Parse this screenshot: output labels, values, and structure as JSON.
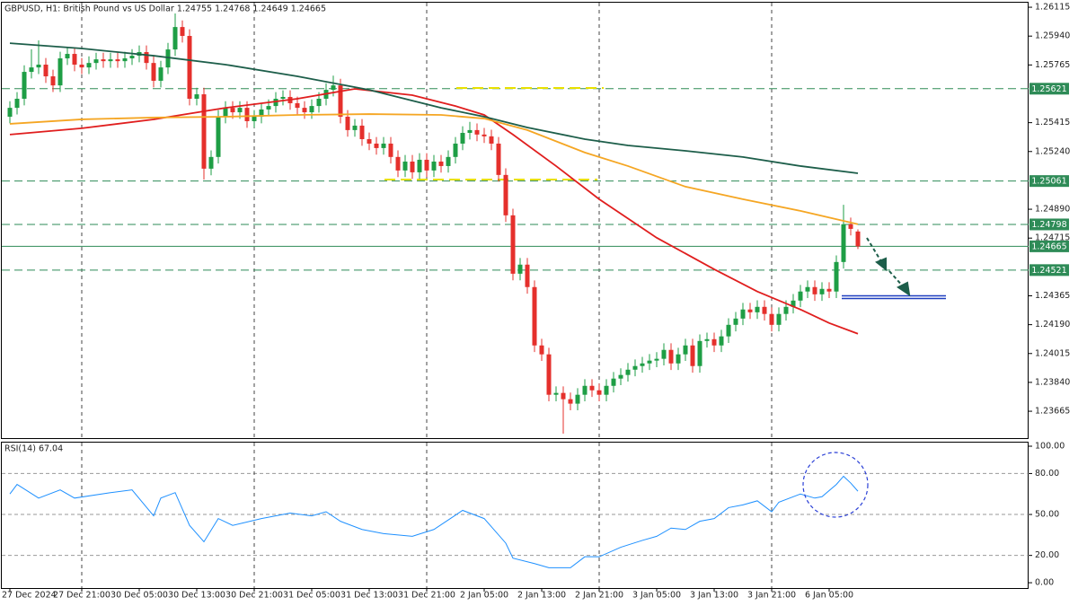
{
  "chart_data": [
    {
      "type": "candlestick",
      "title": "GBPUSD, H1:  British Pound vs US Dollar  1.24755 1.24768 1.24649 1.24665",
      "bull_color": "#1e9e45",
      "bear_color": "#e5302c",
      "ylim": [
        1.23502,
        1.26148
      ],
      "yticks": [
        1.26115,
        {
          "value": 1.2594,
          "label": "1.25940"
        },
        1.25765,
        1.25415,
        {
          "value": 1.2524,
          "label": "1.25240"
        },
        {
          "value": 1.2489,
          "label": "1.24890"
        },
        1.24715,
        1.24365,
        {
          "value": 1.2419,
          "label": "1.24190"
        },
        1.24015,
        {
          "value": 1.2384,
          "label": "1.23840"
        },
        1.23665
      ],
      "categories": [
        "27 Dec 2024",
        null,
        null,
        null,
        null,
        null,
        null,
        null,
        null,
        null,
        "27 Dec 21:00",
        null,
        null,
        null,
        null,
        null,
        null,
        null,
        "30 Dec 05:00",
        null,
        null,
        null,
        null,
        null,
        null,
        null,
        "30 Dec 13:00",
        null,
        null,
        null,
        null,
        null,
        null,
        null,
        "30 Dec 21:00",
        null,
        null,
        null,
        null,
        null,
        null,
        null,
        "31 Dec 05:00",
        null,
        null,
        null,
        null,
        null,
        null,
        null,
        "31 Dec 13:00",
        null,
        null,
        null,
        null,
        null,
        null,
        null,
        "31 Dec 21:00",
        null,
        null,
        null,
        null,
        null,
        null,
        null,
        "2 Jan 05:00",
        null,
        null,
        null,
        null,
        null,
        null,
        null,
        "2 Jan 13:00",
        null,
        null,
        null,
        null,
        null,
        null,
        null,
        "2 Jan 21:00",
        null,
        null,
        null,
        null,
        null,
        null,
        null,
        "3 Jan 05:00",
        null,
        null,
        null,
        null,
        null,
        null,
        null,
        "3 Jan 13:00",
        null,
        null,
        null,
        null,
        null,
        null,
        null,
        "3 Jan 21:00",
        null,
        null,
        null,
        null,
        null,
        null,
        null,
        "6 Jan 05:00",
        null,
        null,
        null,
        null
      ],
      "open": [
        1.25451,
        1.25505,
        1.2556,
        1.25723,
        1.2575,
        1.25767,
        1.25696,
        1.25641,
        1.25805,
        1.25832,
        1.25767,
        1.2575,
        1.25777,
        1.25799,
        1.25788,
        1.25799,
        1.25788,
        1.25805,
        1.25821,
        1.25843,
        1.25777,
        1.25669,
        1.2575,
        1.25859,
        1.25995,
        1.25941,
        1.2556,
        1.25587,
        1.25136,
        1.25207,
        1.25451,
        1.25505,
        1.25478,
        1.25505,
        1.25424,
        1.25451,
        1.25495,
        1.25516,
        1.2556,
        1.25571,
        1.25533,
        1.25505,
        1.25478,
        1.25516,
        1.2556,
        1.25614,
        1.25641,
        1.25451,
        1.2537,
        1.25397,
        1.25315,
        1.25288,
        1.25261,
        1.25288,
        1.25207,
        1.25125,
        1.25179,
        1.25114,
        1.2519,
        1.25125,
        1.25179,
        1.25152,
        1.25207,
        1.25288,
        1.25353,
        1.2537,
        1.25343,
        1.25332,
        1.25288,
        1.25098,
        1.24853,
        1.24499,
        1.24554,
        1.24418,
        1.24064,
        1.2401,
        1.23765,
        1.23776,
        1.23738,
        1.23711,
        1.23765,
        1.23819,
        1.23792,
        1.23765,
        1.23819,
        1.23863,
        1.23885,
        1.23917,
        1.23939,
        1.23955,
        1.23972,
        1.23983,
        1.24037,
        1.23955,
        1.2401,
        1.24064,
        1.23939,
        1.24091,
        1.24102,
        1.24064,
        1.24119,
        1.24189,
        1.24227,
        1.24282,
        1.24265,
        1.24298,
        1.24255,
        1.24189,
        1.24255,
        1.24298,
        1.24336,
        1.24391,
        1.24418,
        1.24374,
        1.24407,
        1.24391,
        1.2457,
        1.24799,
        1.24755
      ],
      "high": [
        1.25545,
        1.256,
        1.25763,
        1.2586,
        1.25914,
        1.25807,
        1.25736,
        1.25845,
        1.25872,
        1.25872,
        1.25807,
        1.25817,
        1.25839,
        1.25839,
        1.25839,
        1.25839,
        1.25845,
        1.25861,
        1.25883,
        1.25883,
        1.25817,
        1.2579,
        1.25899,
        1.26077,
        1.26035,
        1.25981,
        1.25627,
        1.25627,
        1.25247,
        1.25491,
        1.25545,
        1.25545,
        1.25545,
        1.25545,
        1.25491,
        1.25535,
        1.25556,
        1.256,
        1.25611,
        1.25611,
        1.25573,
        1.25545,
        1.25556,
        1.256,
        1.25654,
        1.257,
        1.25681,
        1.25491,
        1.25437,
        1.25437,
        1.25355,
        1.25328,
        1.25328,
        1.25328,
        1.25247,
        1.25219,
        1.25219,
        1.2523,
        1.2523,
        1.25219,
        1.25219,
        1.25247,
        1.25328,
        1.25393,
        1.2542,
        1.2541,
        1.25383,
        1.25372,
        1.25328,
        1.25138,
        1.24893,
        1.24594,
        1.24594,
        1.24458,
        1.24104,
        1.2405,
        1.23816,
        1.23816,
        1.23778,
        1.23805,
        1.23859,
        1.23859,
        1.23832,
        1.23859,
        1.23903,
        1.23925,
        1.23957,
        1.23979,
        1.23995,
        1.24012,
        1.24023,
        1.24077,
        1.24077,
        1.2405,
        1.24104,
        1.24104,
        1.24131,
        1.24142,
        1.24142,
        1.24159,
        1.24229,
        1.24267,
        1.24322,
        1.24322,
        1.24338,
        1.24338,
        1.24295,
        1.24295,
        1.24338,
        1.24376,
        1.24431,
        1.24458,
        1.24458,
        1.24447,
        1.24447,
        1.2461,
        1.24917,
        1.24839,
        1.24768
      ],
      "low": [
        1.25411,
        1.25465,
        1.2552,
        1.25683,
        1.2571,
        1.25656,
        1.25601,
        1.25601,
        1.25765,
        1.25727,
        1.2571,
        1.2571,
        1.25737,
        1.25748,
        1.25748,
        1.25748,
        1.25748,
        1.25765,
        1.25781,
        1.25737,
        1.25629,
        1.25629,
        1.2571,
        1.25819,
        1.25901,
        1.2552,
        1.2552,
        1.2507,
        1.25096,
        1.25167,
        1.25411,
        1.25438,
        1.25438,
        1.25384,
        1.25384,
        1.25411,
        1.25455,
        1.25476,
        1.2552,
        1.25493,
        1.25465,
        1.25438,
        1.25438,
        1.25476,
        1.2552,
        1.25574,
        1.25411,
        1.2533,
        1.2533,
        1.25275,
        1.25248,
        1.25221,
        1.25221,
        1.25167,
        1.25085,
        1.25085,
        1.25074,
        1.25074,
        1.25085,
        1.25085,
        1.25112,
        1.25112,
        1.25167,
        1.25248,
        1.25313,
        1.25303,
        1.25292,
        1.25248,
        1.25058,
        1.24813,
        1.24459,
        1.24459,
        1.24378,
        1.24024,
        1.2397,
        1.23725,
        1.23725,
        1.23529,
        1.23671,
        1.23671,
        1.23725,
        1.23752,
        1.23725,
        1.23725,
        1.23779,
        1.23823,
        1.23845,
        1.23877,
        1.23899,
        1.23915,
        1.23932,
        1.23943,
        1.23915,
        1.23915,
        1.2397,
        1.23899,
        1.23899,
        1.24051,
        1.24024,
        1.24024,
        1.24079,
        1.24149,
        1.24187,
        1.24225,
        1.24225,
        1.24215,
        1.24149,
        1.24149,
        1.24215,
        1.24258,
        1.24296,
        1.24351,
        1.24334,
        1.24334,
        1.24351,
        1.24351,
        1.2453,
        1.24731,
        1.24649
      ],
      "close": [
        1.25505,
        1.2556,
        1.25723,
        1.2575,
        1.25767,
        1.25696,
        1.25641,
        1.25805,
        1.25832,
        1.25767,
        1.2575,
        1.25777,
        1.25799,
        1.25788,
        1.25799,
        1.25788,
        1.25805,
        1.25821,
        1.25843,
        1.25777,
        1.25669,
        1.2575,
        1.25859,
        1.25995,
        1.25941,
        1.2556,
        1.25587,
        1.25136,
        1.25207,
        1.25451,
        1.25505,
        1.25478,
        1.25505,
        1.25424,
        1.25451,
        1.25495,
        1.25516,
        1.2556,
        1.25571,
        1.25533,
        1.25505,
        1.25478,
        1.25516,
        1.2556,
        1.25614,
        1.25641,
        1.25451,
        1.2537,
        1.25397,
        1.25315,
        1.25288,
        1.25261,
        1.25288,
        1.25207,
        1.25125,
        1.25179,
        1.25114,
        1.2519,
        1.25125,
        1.25179,
        1.25152,
        1.25207,
        1.25288,
        1.25353,
        1.2537,
        1.25343,
        1.25332,
        1.25288,
        1.25098,
        1.24853,
        1.24499,
        1.24554,
        1.24418,
        1.24064,
        1.2401,
        1.23765,
        1.23776,
        1.23738,
        1.23711,
        1.23765,
        1.23819,
        1.23792,
        1.23765,
        1.23819,
        1.23863,
        1.23885,
        1.23917,
        1.23939,
        1.23955,
        1.23972,
        1.23983,
        1.24037,
        1.23955,
        1.2401,
        1.24064,
        1.23939,
        1.24091,
        1.24102,
        1.24064,
        1.24119,
        1.24189,
        1.24227,
        1.24282,
        1.24265,
        1.24298,
        1.24255,
        1.24189,
        1.24255,
        1.24298,
        1.24336,
        1.24391,
        1.24418,
        1.24374,
        1.24407,
        1.24391,
        1.2457,
        1.24799,
        1.24771,
        1.24665
      ],
      "lines": [
        {
          "color": "#e01e1e",
          "x": [
            0,
            10,
            20,
            30,
            40,
            48,
            56,
            62,
            66,
            70,
            76,
            82,
            90,
            98,
            104,
            110,
            114,
            118
          ],
          "values": [
            1.25343,
            1.25381,
            1.25435,
            1.25505,
            1.2556,
            1.2562,
            1.25582,
            1.25516,
            1.25462,
            1.25343,
            1.25152,
            1.24951,
            1.24717,
            1.24526,
            1.24391,
            1.24282,
            1.242,
            1.24135
          ]
        },
        {
          "color": "#f5a623",
          "x": [
            0,
            10,
            20,
            30,
            40,
            50,
            60,
            66,
            72,
            80,
            86,
            94,
            102,
            110,
            118
          ],
          "values": [
            1.25408,
            1.25435,
            1.25446,
            1.25451,
            1.25462,
            1.25467,
            1.25462,
            1.2544,
            1.2537,
            1.25234,
            1.25152,
            1.25027,
            1.24951,
            1.2488,
            1.24799
          ]
        },
        {
          "color": "#1d5e4a",
          "x": [
            0,
            10,
            20,
            30,
            40,
            50,
            60,
            66,
            72,
            80,
            86,
            94,
            102,
            110,
            118
          ],
          "values": [
            1.25897,
            1.25865,
            1.25821,
            1.25767,
            1.25696,
            1.25614,
            1.25505,
            1.25451,
            1.25386,
            1.25315,
            1.25277,
            1.25244,
            1.25207,
            1.25152,
            1.25108
          ]
        }
      ],
      "levels": [
        1.25621,
        1.25061,
        1.24798,
        1.24521
      ],
      "level_color": "#2e8b57",
      "current_price": 1.24665
    },
    {
      "type": "line",
      "title": "RSI(14) 67.04",
      "color": "#1e90ff",
      "ylim": [
        -3.9,
        103.3
      ],
      "yticks": [
        {
          "value": 100,
          "label": "100.00"
        },
        {
          "value": 80,
          "label": "80.00"
        },
        {
          "value": 50,
          "label": "50.00"
        },
        {
          "value": 20,
          "label": "20.00"
        },
        {
          "value": 0,
          "label": "0.00"
        }
      ],
      "grid_levels": [
        80,
        50,
        20
      ],
      "x": [
        0,
        1,
        4,
        7,
        9,
        14,
        17,
        20,
        21,
        23,
        25,
        27,
        29,
        31,
        35,
        39,
        42,
        44,
        46,
        49,
        52,
        56,
        59,
        63,
        66,
        69,
        70,
        73,
        75,
        78,
        80,
        82,
        85,
        88,
        90,
        92,
        94,
        96,
        98,
        100,
        102,
        104,
        106,
        107,
        110,
        112,
        113,
        115,
        116,
        117,
        118
      ],
      "values": [
        65,
        72,
        62,
        68,
        62,
        66,
        68,
        49,
        62,
        66,
        42,
        30,
        47,
        42,
        47,
        51,
        49,
        52,
        45,
        39,
        36,
        34,
        39,
        53,
        47,
        29,
        18,
        14,
        11,
        11,
        19,
        19,
        26,
        31,
        34,
        40,
        39,
        45,
        47,
        55,
        57,
        60,
        52,
        59,
        65,
        62,
        63,
        72,
        78,
        73,
        67.04
      ]
    }
  ]
}
